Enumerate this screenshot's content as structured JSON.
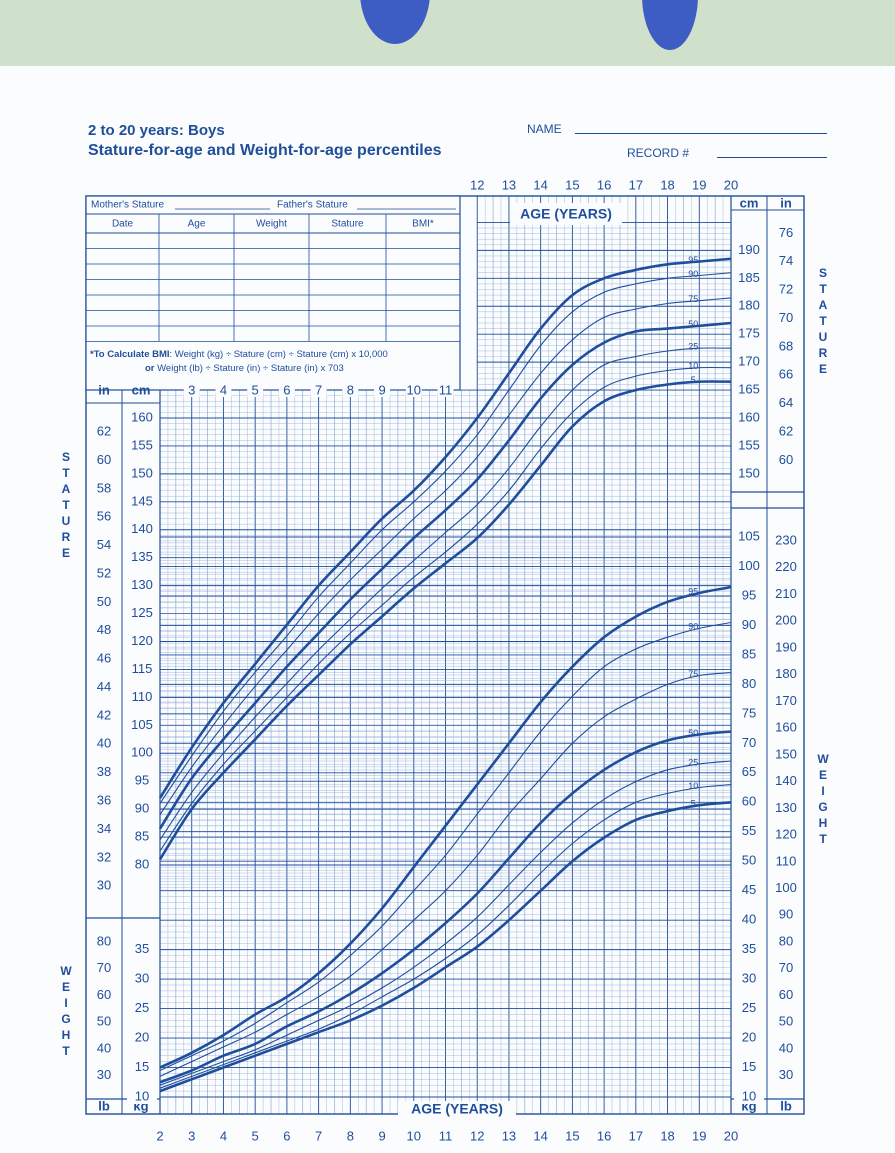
{
  "header": {
    "title_line1": "2 to 20 years: Boys",
    "title_line2": "Stature-for-age and Weight-for-age percentiles",
    "name_label": "NAME",
    "record_label": "RECORD #"
  },
  "record_table": {
    "mother_stature": "Mother's Stature",
    "father_stature": "Father's Stature",
    "columns": [
      "Date",
      "Age",
      "Weight",
      "Stature",
      "BMI*"
    ],
    "bmi_note_bold": "*To Calculate BMI",
    "bmi_note_line1": ": Weight (kg) ÷ Stature (cm) ÷ Stature (cm) x 10,000",
    "bmi_note_or": "or",
    "bmi_note_line2": " Weight (lb) ÷ Stature (in) ÷ Stature (in) x 703"
  },
  "colors": {
    "ink": "#1f4e9c",
    "grid": "#7f9fd6",
    "paper": "#fbfcfd",
    "band": "#cfe0cb",
    "band_blob": "#3d5cc4"
  },
  "chart_data": [
    {
      "type": "line",
      "title": "Stature-for-age",
      "xlabel": "AGE (YEARS)",
      "ylabel": "STATURE",
      "units_left": [
        "in",
        "cm"
      ],
      "units_right": [
        "cm",
        "in"
      ],
      "xlim": [
        2,
        20
      ],
      "ylim": [
        75,
        195
      ],
      "x_ticks_top": [
        12,
        13,
        14,
        15,
        16,
        17,
        18,
        19,
        20
      ],
      "x_ticks_inner": [
        3,
        4,
        5,
        6,
        7,
        8,
        9,
        10,
        11
      ],
      "y_ticks_cm_left": [
        80,
        85,
        90,
        95,
        100,
        105,
        110,
        115,
        120,
        125,
        130,
        135,
        140,
        145,
        150,
        155,
        160
      ],
      "y_ticks_in_left": [
        30,
        32,
        34,
        36,
        38,
        40,
        42,
        44,
        46,
        48,
        50,
        52,
        54,
        56,
        58,
        60,
        62
      ],
      "y_ticks_cm_right": [
        150,
        155,
        160,
        165,
        170,
        175,
        180,
        185,
        190
      ],
      "y_ticks_in_right": [
        60,
        62,
        64,
        66,
        68,
        70,
        72,
        74,
        76
      ],
      "x": [
        2,
        3,
        4,
        5,
        6,
        7,
        8,
        9,
        10,
        11,
        12,
        13,
        14,
        15,
        16,
        17,
        18,
        19,
        20
      ],
      "series": [
        {
          "name": "95",
          "values": [
            92,
            101,
            109,
            116,
            123,
            130,
            136,
            142,
            147,
            153,
            160,
            168,
            176,
            182,
            185,
            186.5,
            187.5,
            188,
            188.5
          ]
        },
        {
          "name": "90",
          "values": [
            91,
            99.5,
            107.5,
            114.5,
            121,
            128,
            134,
            140,
            145,
            150.5,
            157,
            165,
            173,
            179,
            182.5,
            184,
            185,
            185.5,
            186
          ]
        },
        {
          "name": "75",
          "values": [
            89,
            97.5,
            105,
            112,
            118.5,
            125,
            131,
            136.5,
            142,
            147,
            153,
            160.5,
            168,
            174,
            178,
            179.5,
            180.5,
            181,
            181.5
          ]
        },
        {
          "name": "50",
          "values": [
            86.5,
            95.5,
            102.5,
            109,
            115.5,
            121.5,
            127.5,
            133,
            138.5,
            143.5,
            149,
            156,
            163.5,
            169.5,
            173.5,
            175.5,
            176,
            176.5,
            177
          ]
        },
        {
          "name": "25",
          "values": [
            84.5,
            93,
            100,
            106.5,
            112.5,
            118.5,
            124,
            129.5,
            134.5,
            139.5,
            144.5,
            151,
            158.5,
            165,
            169.5,
            171,
            172,
            172.5,
            172.5
          ]
        },
        {
          "name": "10",
          "values": [
            82.5,
            91,
            98,
            104,
            110,
            116,
            121.5,
            126.5,
            131.5,
            136,
            141,
            147,
            154.5,
            161,
            165.5,
            167.5,
            168.5,
            169,
            169
          ]
        },
        {
          "name": "5",
          "values": [
            81,
            90,
            96.5,
            102.5,
            108.5,
            114,
            119.5,
            124.5,
            129.5,
            134,
            138.5,
            144.5,
            151.5,
            158.5,
            163,
            165,
            166,
            166.5,
            166.5
          ]
        }
      ],
      "bold_series": [
        "95",
        "50",
        "5"
      ]
    },
    {
      "type": "line",
      "title": "Weight-for-age",
      "xlabel": "AGE (YEARS)",
      "ylabel": "WEIGHT",
      "units_left": [
        "lb",
        "kg"
      ],
      "units_right": [
        "kg",
        "lb"
      ],
      "xlim": [
        2,
        20
      ],
      "ylim": [
        10,
        105
      ],
      "x_ticks_bottom": [
        2,
        3,
        4,
        5,
        6,
        7,
        8,
        9,
        10,
        11,
        12,
        13,
        14,
        15,
        16,
        17,
        18,
        19,
        20
      ],
      "y_ticks_kg_left": [
        10,
        15,
        20,
        25,
        30,
        35
      ],
      "y_ticks_lb_left": [
        30,
        40,
        50,
        60,
        70,
        80
      ],
      "y_ticks_kg_right": [
        10,
        15,
        20,
        25,
        30,
        35,
        40,
        45,
        50,
        55,
        60,
        65,
        70,
        75,
        80,
        85,
        90,
        95,
        100,
        105
      ],
      "y_ticks_lb_right": [
        30,
        40,
        50,
        60,
        70,
        80,
        90,
        100,
        110,
        120,
        130,
        140,
        150,
        160,
        170,
        180,
        190,
        200,
        210,
        220,
        230
      ],
      "x": [
        2,
        3,
        4,
        5,
        6,
        7,
        8,
        9,
        10,
        11,
        12,
        13,
        14,
        15,
        16,
        17,
        18,
        19,
        20
      ],
      "series": [
        {
          "name": "95",
          "values": [
            15,
            17.5,
            20.5,
            24,
            27,
            31,
            36,
            42,
            49,
            56,
            63,
            70,
            77,
            83,
            88,
            91.5,
            94,
            95.5,
            96.5
          ]
        },
        {
          "name": "90",
          "values": [
            14.5,
            17,
            19.5,
            22.5,
            26,
            29.5,
            34,
            39,
            45,
            51,
            58,
            65,
            72,
            78,
            83,
            86,
            88,
            89.5,
            90.5
          ]
        },
        {
          "name": "75",
          "values": [
            13.5,
            16,
            18.5,
            21,
            24,
            27,
            30.5,
            35,
            40,
            45,
            51,
            58,
            64,
            70,
            74.5,
            77.5,
            80,
            81.5,
            82
          ]
        },
        {
          "name": "50",
          "values": [
            12.5,
            14.5,
            17,
            19,
            22,
            24.5,
            27.5,
            31,
            35,
            39.5,
            44.5,
            50.5,
            56.5,
            61.5,
            65.5,
            68.5,
            70.5,
            71.5,
            72
          ]
        },
        {
          "name": "25",
          "values": [
            12,
            14,
            16,
            18,
            20.5,
            23,
            25.5,
            28.5,
            32,
            36,
            40.5,
            46,
            51.5,
            56.5,
            60.5,
            63.5,
            65.5,
            66.5,
            67
          ]
        },
        {
          "name": "10",
          "values": [
            11.5,
            13.5,
            15.5,
            17.5,
            19.5,
            21.5,
            24,
            27,
            30,
            33.5,
            37.5,
            42.5,
            48,
            53,
            57,
            60,
            61.5,
            62.5,
            63
          ]
        },
        {
          "name": "5",
          "values": [
            11,
            13,
            15,
            17,
            19,
            21,
            23,
            25.5,
            28.5,
            32,
            35.5,
            40,
            45,
            50,
            54,
            57,
            58.5,
            59.5,
            60
          ]
        }
      ],
      "bold_series": [
        "95",
        "50",
        "5"
      ]
    }
  ]
}
